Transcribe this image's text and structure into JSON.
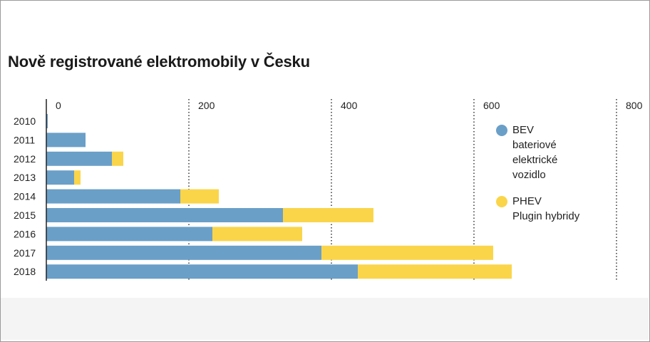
{
  "title": "Nově registrované elektromobily v Česku",
  "colors": {
    "bev": "#6a9fc8",
    "phev": "#fad54a"
  },
  "legend": [
    {
      "key": "bev",
      "label": "BEV",
      "sub": [
        "bateriové",
        "elektrické",
        "vozidlo"
      ]
    },
    {
      "key": "phev",
      "label": "PHEV",
      "sub": [
        "Plugin hybridy"
      ]
    }
  ],
  "chart_data": {
    "type": "bar",
    "orientation": "horizontal",
    "stacked": true,
    "title": "Nově registrované elektromobily v Česku",
    "categories": [
      "2010",
      "2011",
      "2012",
      "2013",
      "2014",
      "2015",
      "2016",
      "2017",
      "2018"
    ],
    "series": [
      {
        "name": "BEV",
        "values": [
          2,
          55,
          92,
          39,
          188,
          332,
          233,
          386,
          437
        ]
      },
      {
        "name": "PHEV",
        "values": [
          0,
          0,
          16,
          9,
          54,
          127,
          126,
          241,
          216
        ]
      }
    ],
    "xlim": [
      0,
      800
    ],
    "xticks": [
      "0",
      "200",
      "400",
      "600",
      "800"
    ],
    "grid": "vertical dotted",
    "legend_position": "right"
  }
}
